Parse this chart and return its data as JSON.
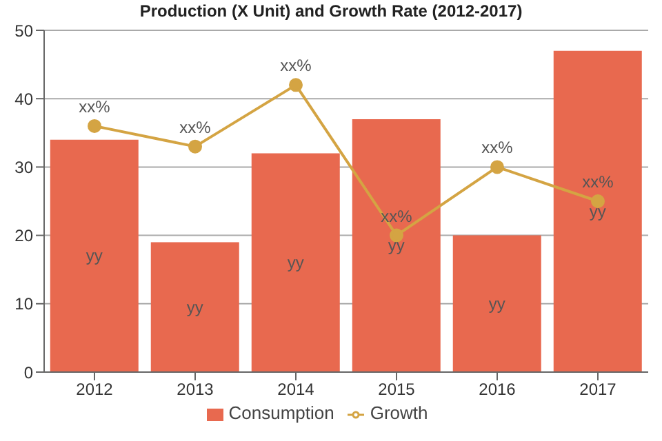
{
  "chart_data": {
    "type": "bar",
    "title": "Production (X Unit) and Growth Rate (2012-2017)",
    "categories": [
      "2012",
      "2013",
      "2014",
      "2015",
      "2016",
      "2017"
    ],
    "series": [
      {
        "name": "Consumption",
        "color": "#e8694f",
        "values": [
          34,
          19,
          32,
          37,
          20,
          47
        ],
        "value_labels": [
          "yy",
          "yy",
          "yy",
          "yy",
          "yy",
          "yy"
        ]
      },
      {
        "name": "Growth",
        "type": "line",
        "color": "#d4a443",
        "values": [
          36,
          33,
          42,
          20,
          30,
          25
        ],
        "value_labels": [
          "xx%",
          "xx%",
          "xx%",
          "xx%",
          "xx%",
          "xx%"
        ]
      }
    ],
    "ylim": [
      0,
      50
    ],
    "yticks": [
      0,
      10,
      20,
      30,
      40,
      50
    ],
    "grid": "y",
    "legend": "bottom",
    "marker": "circle",
    "line_style": "solid"
  }
}
